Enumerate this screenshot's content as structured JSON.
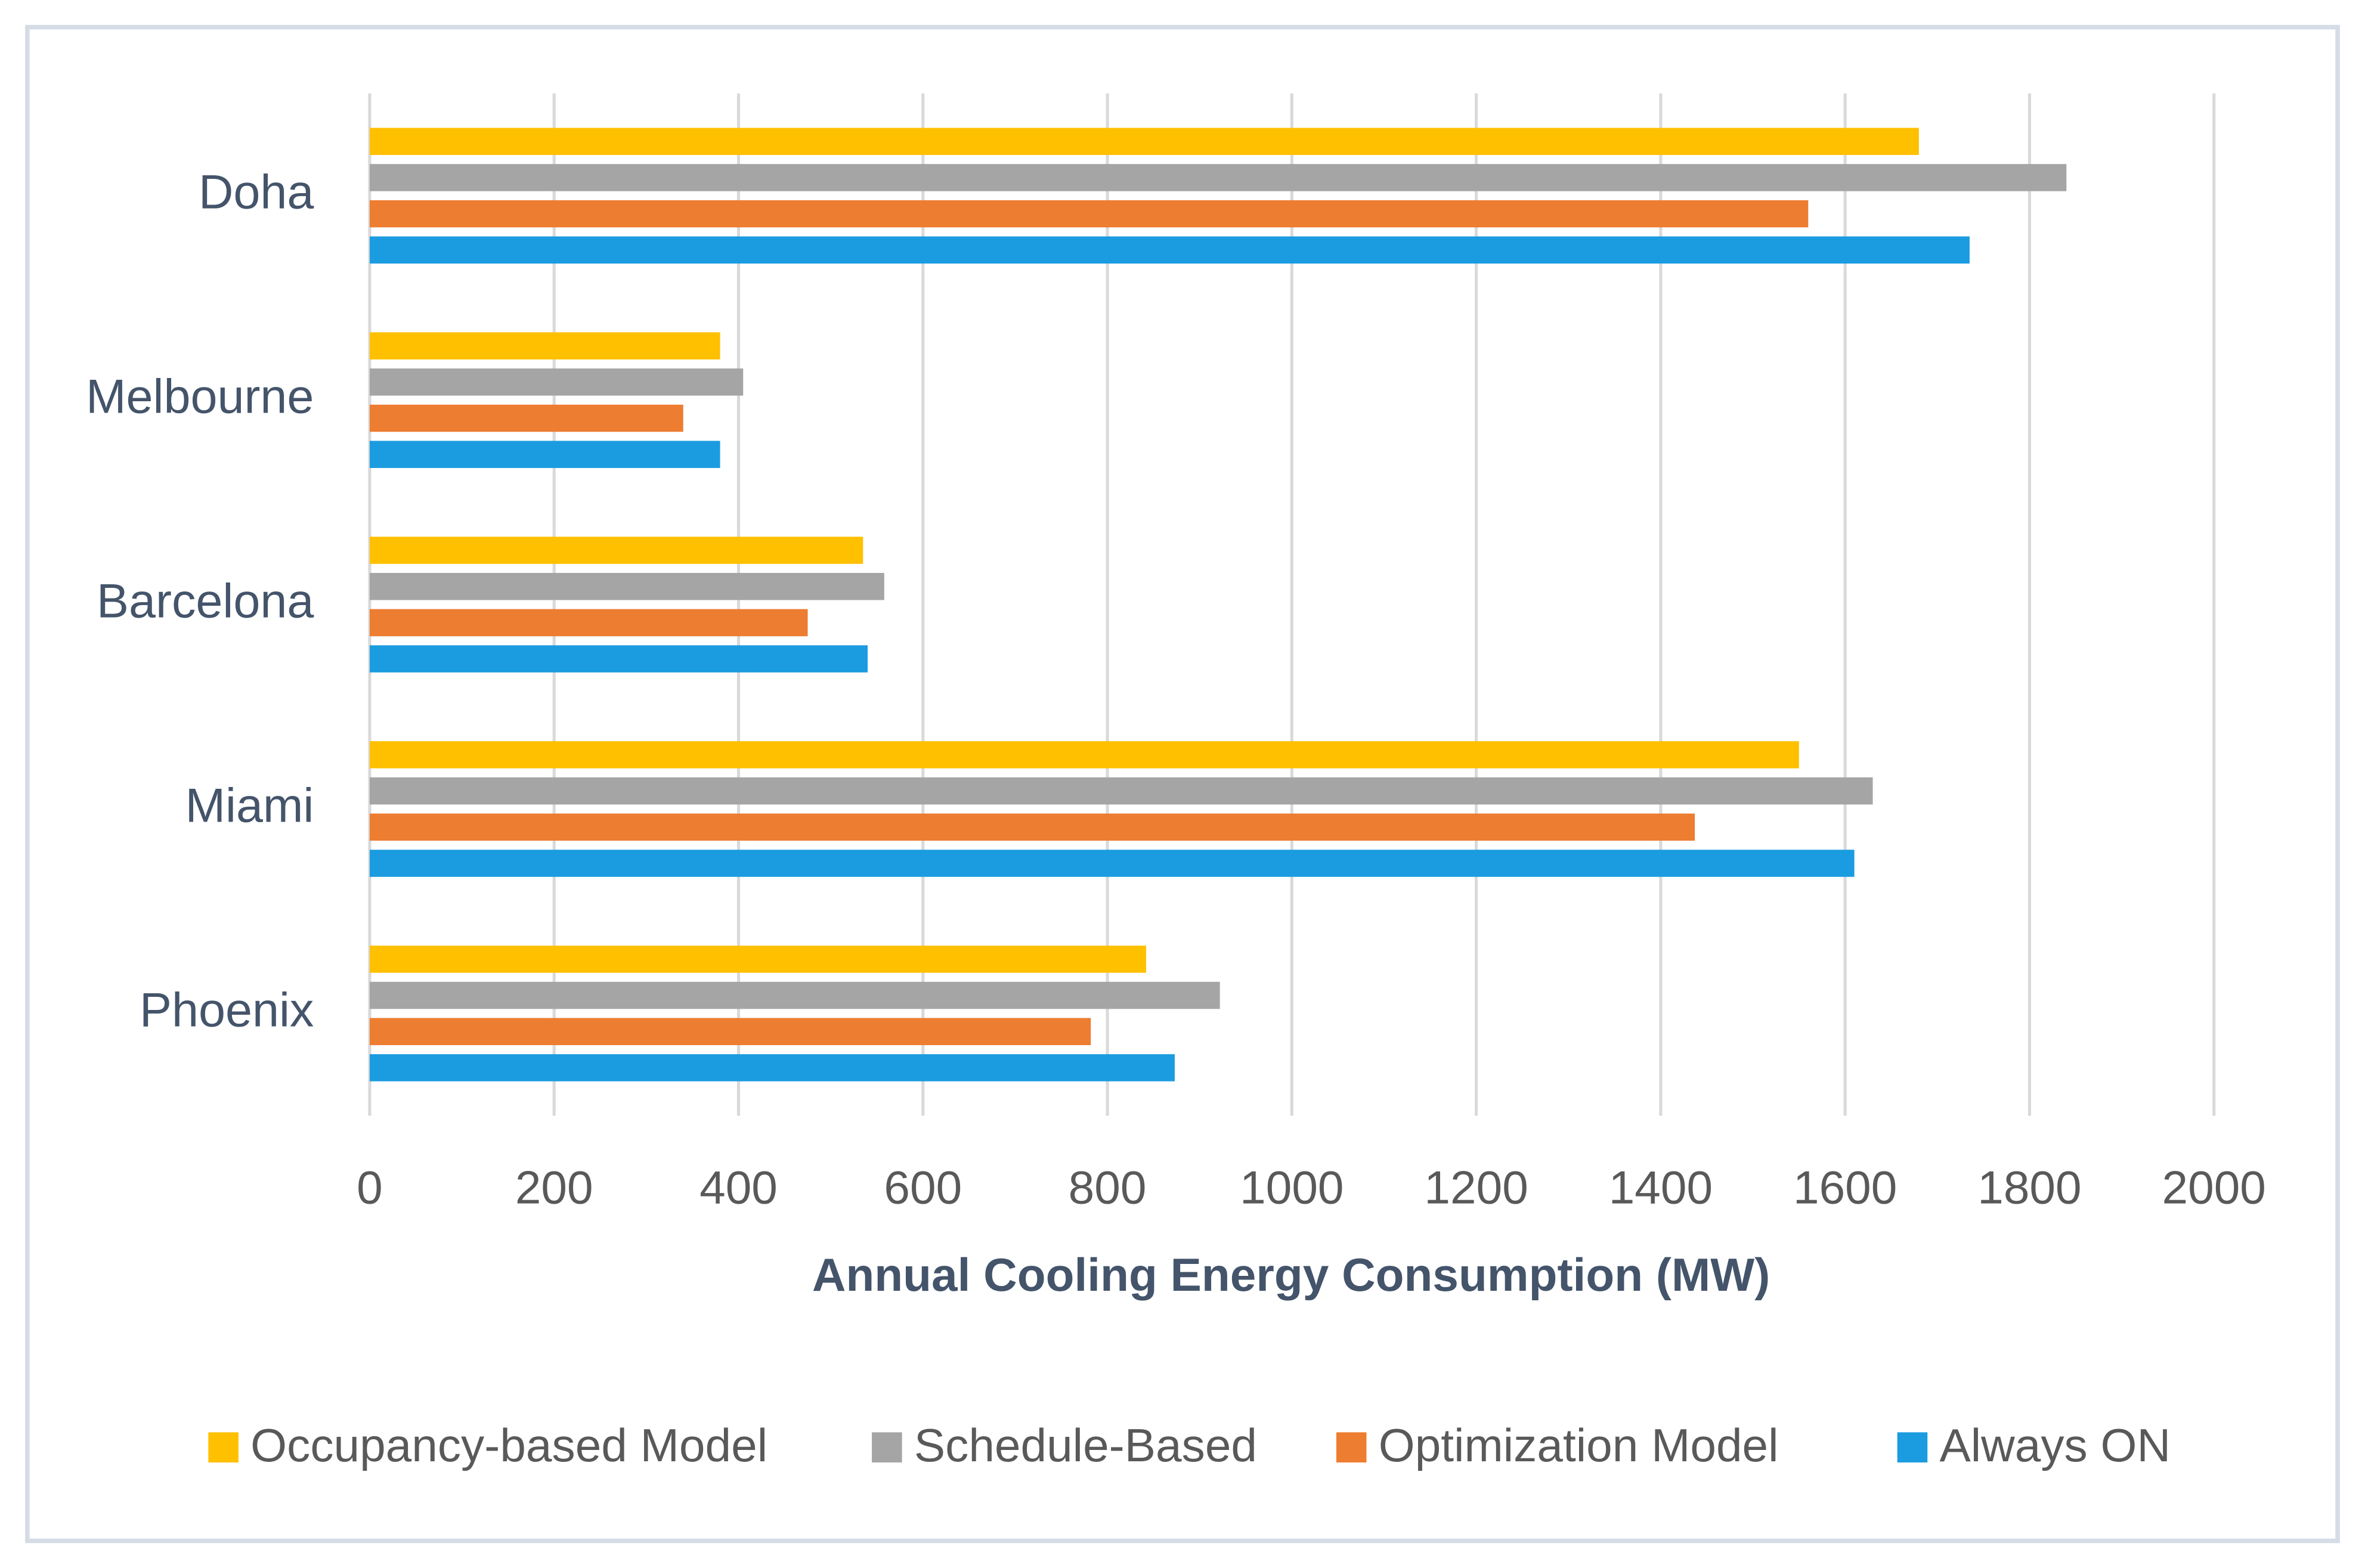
{
  "chart_data": {
    "type": "hbar",
    "x_label": "Annual Cooling Energy Consumption (MW)",
    "categories": [
      "Doha",
      "Melbourne",
      "Barcelona",
      "Miami",
      "Phoenix"
    ],
    "series": [
      {
        "name": "Occupancy-based Model",
        "color": "#ffc000",
        "values": [
          1680,
          380,
          535,
          1550,
          842
        ]
      },
      {
        "name": "Schedule-Based",
        "color": "#a5a5a5",
        "values": [
          1840,
          405,
          558,
          1630,
          922
        ]
      },
      {
        "name": "Optimization Model",
        "color": "#ed7d31",
        "values": [
          1560,
          340,
          475,
          1437,
          782
        ]
      },
      {
        "name": "Always ON",
        "color": "#1b9ce0",
        "values": [
          1735,
          380,
          540,
          1610,
          873
        ]
      }
    ],
    "xlim": [
      0,
      2000
    ],
    "xticks": [
      0,
      200,
      400,
      600,
      800,
      1000,
      1200,
      1400,
      1600,
      1800,
      2000
    ],
    "grid": true,
    "legend": "bottom"
  }
}
